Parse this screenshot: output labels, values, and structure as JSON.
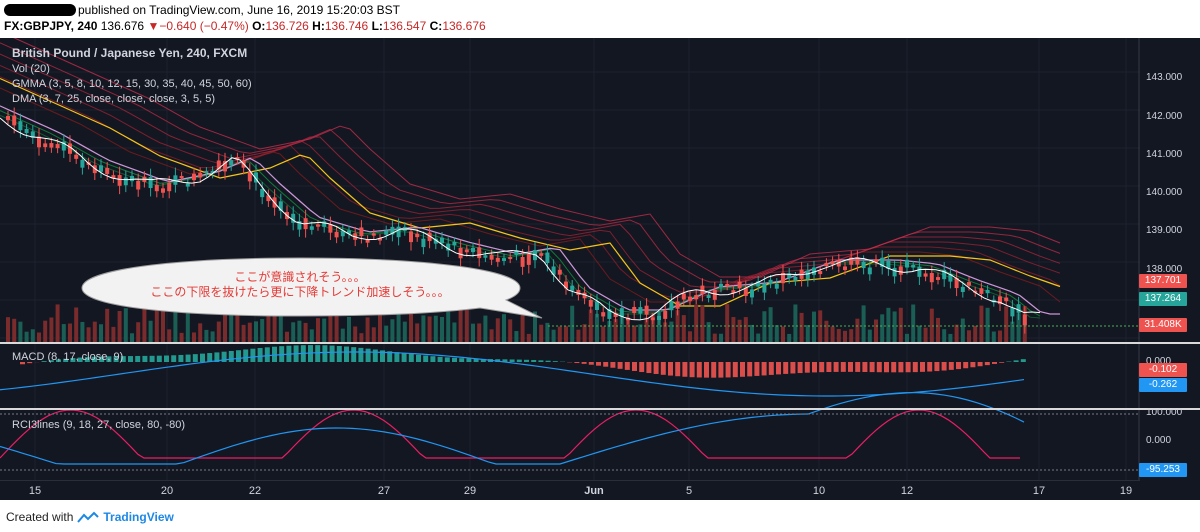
{
  "header": {
    "line1": "published on TradingView.com, June 16, 2019 15:20:03 BST",
    "symbol": "FX:GBPJPY, 240",
    "last": "136.676",
    "change": "−0.640 (−0.47%)",
    "o_label": "O:",
    "o": "136.726",
    "h_label": "H:",
    "h": "136.746",
    "l_label": "L:",
    "l": "136.547",
    "c_label": "C:",
    "c": "136.676"
  },
  "main_pane": {
    "title": "British Pound / Japanese Yen, 240, FXCM",
    "indicators": [
      "Vol (20)",
      "GMMA (3, 5, 8, 10, 12, 15, 30, 35, 40, 45, 50, 60)",
      "DMA (3, 7, 25, close, close, close, 3, 5, 5)"
    ],
    "y_ticks": [
      "143.000",
      "142.000",
      "141.000",
      "140.000",
      "139.000",
      "138.000"
    ],
    "badges": {
      "price_red": "137.701",
      "price_green": "137.264",
      "volume": "31.408K"
    }
  },
  "callout": {
    "line1": "ここが意識されそう。。。",
    "line2": "ここの下限を抜けたら更に下降トレンド加速しそう。。。"
  },
  "macd_pane": {
    "title": "MACD (8, 17, close, 9)",
    "y_ticks": [
      "0.000"
    ],
    "badges": {
      "red": "-0.102",
      "blue": "-0.262"
    }
  },
  "rci_pane": {
    "title": "RCI3lines (9, 18, 27, close, 80, -80)",
    "y_ticks": [
      "100.000",
      "0.000"
    ],
    "badges": {
      "blue": "-95.253"
    }
  },
  "x_axis": [
    "15",
    "20",
    "22",
    "27",
    "29",
    "Jun",
    "5",
    "10",
    "12",
    "17",
    "19"
  ],
  "footer": {
    "created_with": "Created with",
    "brand": "TradingView"
  },
  "colors": {
    "background": "#131722",
    "up": "#26a69a",
    "down": "#ef5350",
    "macd_line": "#2196f3",
    "rci_pink": "#e91e63"
  }
}
